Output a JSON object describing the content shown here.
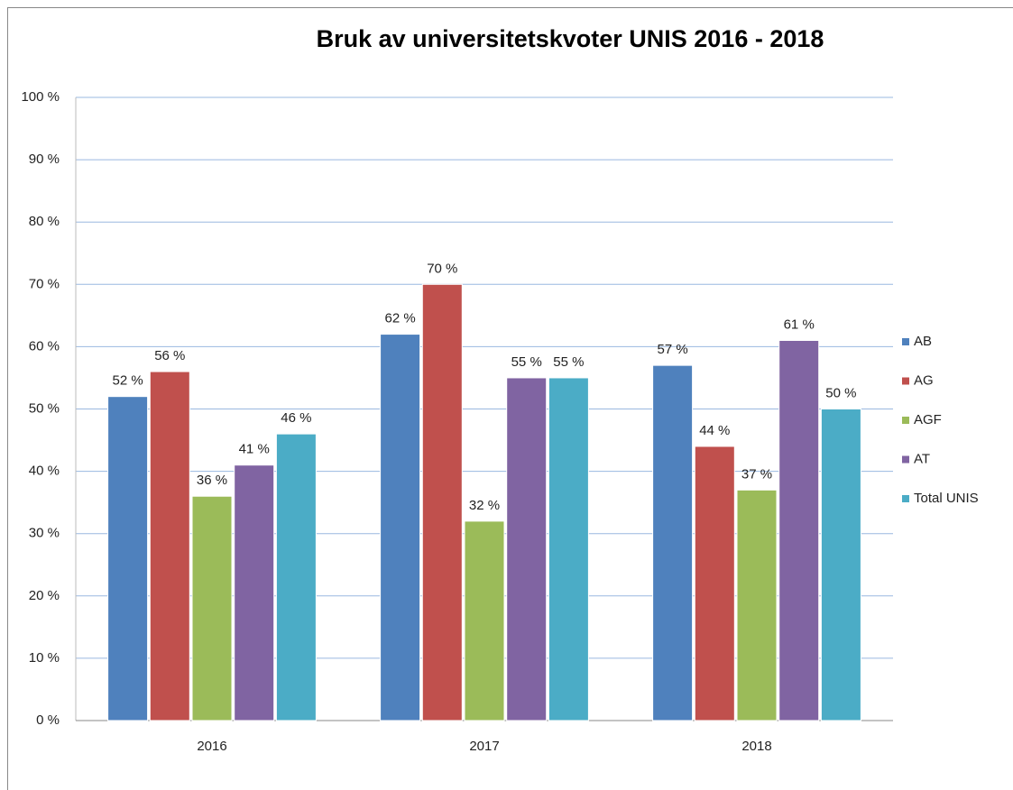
{
  "chart_data": {
    "type": "bar",
    "title": "Bruk av universitetskvoter UNIS 2016 - 2018",
    "categories": [
      "2016",
      "2017",
      "2018"
    ],
    "series": [
      {
        "name": "AB",
        "color": "#4f81bd",
        "values": [
          52,
          62,
          57
        ],
        "value_labels": [
          "52 %",
          "62 %",
          "57 %"
        ]
      },
      {
        "name": "AG",
        "color": "#c0504d",
        "values": [
          56,
          70,
          44
        ],
        "value_labels": [
          "56 %",
          "70 %",
          "44 %"
        ]
      },
      {
        "name": "AGF",
        "color": "#9bbb59",
        "values": [
          36,
          32,
          37
        ],
        "value_labels": [
          "36 %",
          "32 %",
          "37 %"
        ]
      },
      {
        "name": "AT",
        "color": "#8064a2",
        "values": [
          41,
          55,
          61
        ],
        "value_labels": [
          "41 %",
          "55 %",
          "61 %"
        ]
      },
      {
        "name": "Total UNIS",
        "color": "#4bacc6",
        "values": [
          46,
          55,
          50
        ],
        "value_labels": [
          "46 %",
          "55 %",
          "50 %"
        ]
      }
    ],
    "ylim": [
      0,
      100
    ],
    "yticks": [
      {
        "value": 0,
        "label": "0 %"
      },
      {
        "value": 10,
        "label": "10 %"
      },
      {
        "value": 20,
        "label": "20 %"
      },
      {
        "value": 30,
        "label": "30 %"
      },
      {
        "value": 40,
        "label": "40 %"
      },
      {
        "value": 50,
        "label": "50 %"
      },
      {
        "value": 60,
        "label": "60 %"
      },
      {
        "value": 70,
        "label": "70 %"
      },
      {
        "value": 80,
        "label": "80 %"
      },
      {
        "value": 90,
        "label": "90 %"
      },
      {
        "value": 100,
        "label": "100 %"
      }
    ],
    "grid": true,
    "legend": "right"
  }
}
